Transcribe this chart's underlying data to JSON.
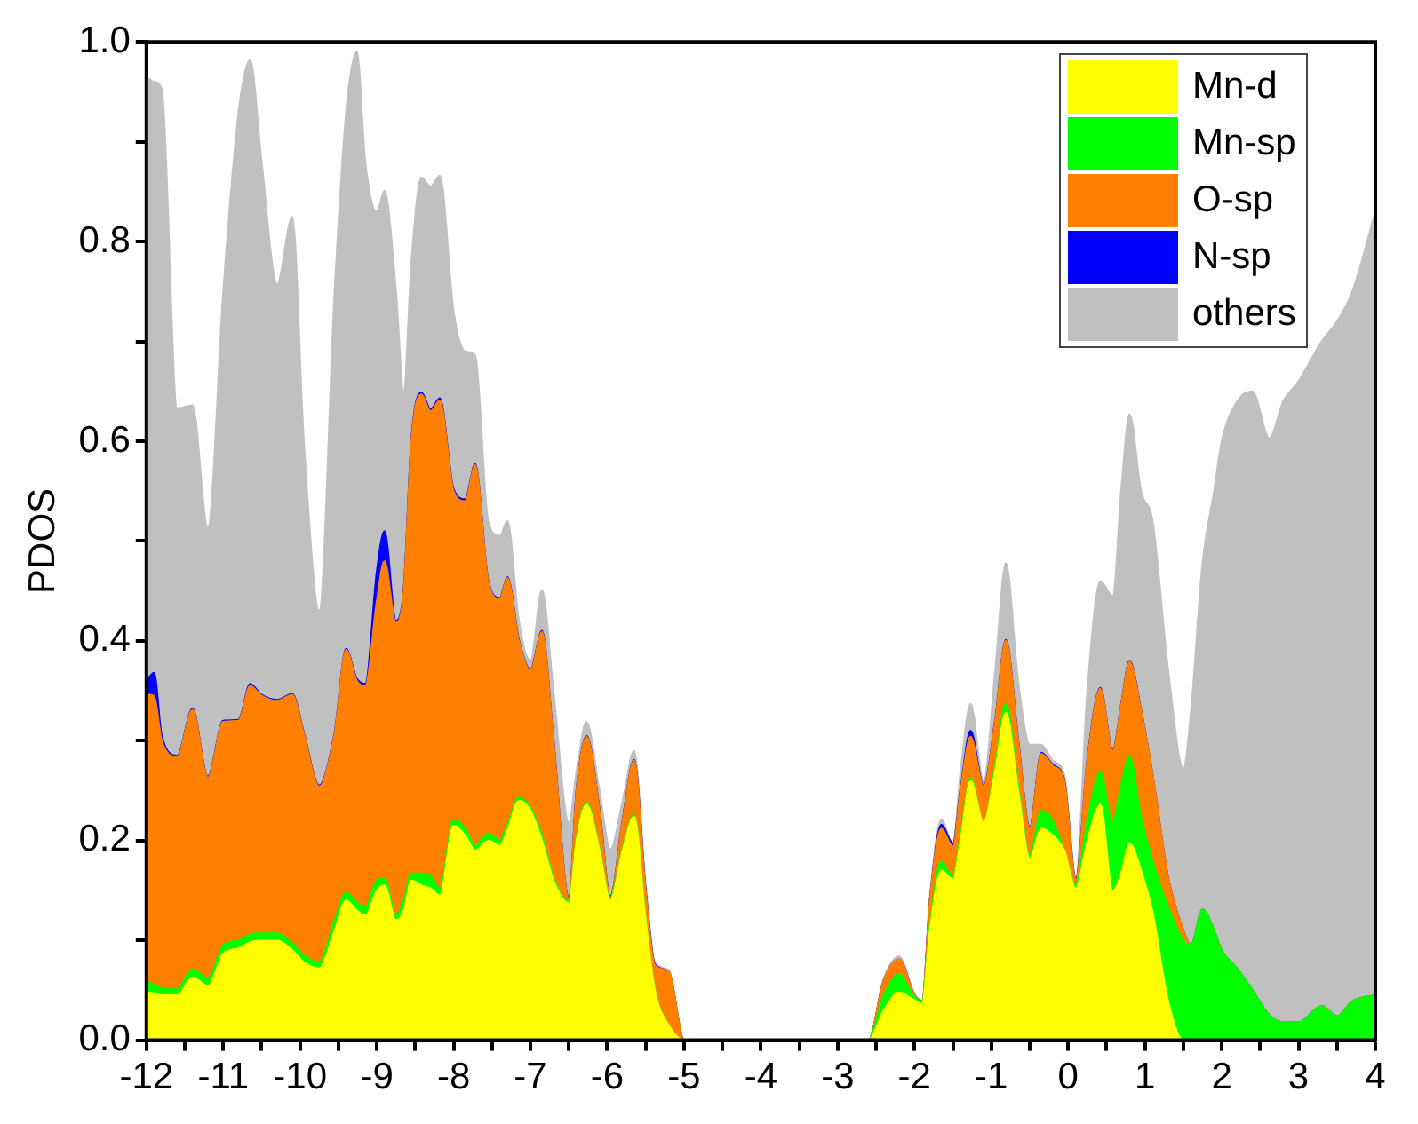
{
  "chart_data": {
    "type": "area",
    "stacked": true,
    "ylabel": "PDOS",
    "legend": "top right",
    "x": [
      -12,
      -11.9,
      -11.8,
      -11.6,
      -11.4,
      -11.2,
      -11.0,
      -10.8,
      -10.65,
      -10.5,
      -10.3,
      -10.1,
      -9.95,
      -9.75,
      -9.55,
      -9.4,
      -9.26,
      -9.15,
      -9.0,
      -8.9,
      -8.75,
      -8.65,
      -8.55,
      -8.42,
      -8.3,
      -8.18,
      -8.0,
      -7.85,
      -7.72,
      -7.55,
      -7.4,
      -7.3,
      -7.15,
      -7.0,
      -6.85,
      -6.7,
      -6.5,
      -6.4,
      -6.27,
      -6.1,
      -5.96,
      -5.8,
      -5.65,
      -5.5,
      -5.38,
      -5.2,
      -5.0,
      -2.6,
      -2.4,
      -2.2,
      -2.0,
      -1.9,
      -1.8,
      -1.65,
      -1.5,
      -1.4,
      -1.27,
      -1.1,
      -0.95,
      -0.81,
      -0.65,
      -0.5,
      -0.35,
      -0.2,
      -0.05,
      0.1,
      0.25,
      0.42,
      0.58,
      0.7,
      0.8,
      0.95,
      1.1,
      1.3,
      1.5,
      1.6,
      1.75,
      1.9,
      2.0,
      2.2,
      2.4,
      2.62,
      2.8,
      3.0,
      3.3,
      3.5,
      3.7,
      4.0
    ],
    "series": [
      {
        "name": "Mn-d",
        "color": "#ffff00",
        "values": [
          0.048,
          0.047,
          0.045,
          0.045,
          0.063,
          0.054,
          0.087,
          0.092,
          0.098,
          0.1,
          0.1,
          0.09,
          0.078,
          0.072,
          0.11,
          0.14,
          0.13,
          0.125,
          0.15,
          0.155,
          0.12,
          0.13,
          0.16,
          0.155,
          0.152,
          0.145,
          0.215,
          0.205,
          0.19,
          0.2,
          0.195,
          0.21,
          0.24,
          0.23,
          0.2,
          0.16,
          0.137,
          0.2,
          0.236,
          0.19,
          0.14,
          0.19,
          0.224,
          0.12,
          0.05,
          0.015,
          0,
          0,
          0.03,
          0.048,
          0.04,
          0.036,
          0.11,
          0.17,
          0.161,
          0.2,
          0.26,
          0.218,
          0.27,
          0.328,
          0.25,
          0.182,
          0.212,
          0.205,
          0.19,
          0.152,
          0.2,
          0.236,
          0.149,
          0.17,
          0.197,
          0.17,
          0.128,
          0.04,
          0,
          0,
          0,
          0,
          0,
          0,
          0,
          0,
          0,
          0,
          0,
          0,
          0,
          0
        ]
      },
      {
        "name": "Mn-sp",
        "color": "#00ff00",
        "values": [
          0.01,
          0.009,
          0.007,
          0.006,
          0.008,
          0.008,
          0.008,
          0.008,
          0.008,
          0.007,
          0.007,
          0.007,
          0.007,
          0.006,
          0.01,
          0.008,
          0.008,
          0.008,
          0.01,
          0.007,
          0.005,
          0.01,
          0.007,
          0.012,
          0.013,
          0.007,
          0.006,
          0.007,
          0.005,
          0.007,
          0.005,
          0.005,
          0.003,
          0.003,
          0.005,
          0.003,
          0.002,
          0.002,
          0.002,
          0.002,
          0.002,
          0.002,
          0.002,
          0.001,
          0.001,
          0,
          0,
          0,
          0.015,
          0.018,
          0.003,
          0.003,
          0.005,
          0.009,
          0.003,
          0.005,
          0.003,
          0,
          0.005,
          0.009,
          0.005,
          0.003,
          0.018,
          0.015,
          0,
          0.003,
          0.02,
          0.033,
          0.069,
          0.09,
          0.087,
          0.054,
          0.052,
          0.094,
          0.1,
          0.095,
          0.131,
          0.11,
          0.09,
          0.072,
          0.05,
          0.025,
          0.018,
          0.018,
          0.034,
          0.024,
          0.039,
          0.045
        ]
      },
      {
        "name": "O-sp",
        "color": "#ff8000",
        "values": [
          0.288,
          0.289,
          0.248,
          0.233,
          0.26,
          0.201,
          0.224,
          0.22,
          0.249,
          0.238,
          0.233,
          0.249,
          0.222,
          0.176,
          0.187,
          0.243,
          0.222,
          0.222,
          0.28,
          0.318,
          0.293,
          0.31,
          0.433,
          0.48,
          0.465,
          0.489,
          0.329,
          0.328,
          0.381,
          0.253,
          0.242,
          0.248,
          0.157,
          0.137,
          0.204,
          0.137,
          0.003,
          0.048,
          0.066,
          0.038,
          0.001,
          0.028,
          0.054,
          0.029,
          0.024,
          0.054,
          0,
          0,
          0.015,
          0.015,
          0.002,
          0,
          0.025,
          0.033,
          0.03,
          0.045,
          0.041,
          0.036,
          0.045,
          0.063,
          0.045,
          0.027,
          0.057,
          0.055,
          0.07,
          0.006,
          0.06,
          0.083,
          0.072,
          0.08,
          0.095,
          0.106,
          0.086,
          0.03,
          0.01,
          0,
          0,
          0,
          0,
          0,
          0,
          0,
          0,
          0,
          0,
          0,
          0,
          0
        ]
      },
      {
        "name": "N-sp",
        "color": "#0000ff",
        "values": [
          0.014,
          0.023,
          0.005,
          0.001,
          0.001,
          0.001,
          0.001,
          0.001,
          0.002,
          0.001,
          0.001,
          0.001,
          0.001,
          0.001,
          0.001,
          0.001,
          0.002,
          0.002,
          0.03,
          0.03,
          0.002,
          0.002,
          0.002,
          0.002,
          0.002,
          0.002,
          0.002,
          0.002,
          0.001,
          0.001,
          0.001,
          0.001,
          0.001,
          0.001,
          0.001,
          0.001,
          0.001,
          0.001,
          0.001,
          0.001,
          0.001,
          0.001,
          0.001,
          0.001,
          0.001,
          0,
          0,
          0,
          0,
          0,
          0,
          0,
          0,
          0.004,
          0.003,
          0.002,
          0.006,
          0.001,
          0.001,
          0.001,
          0.001,
          0.001,
          0.001,
          0.001,
          0.001,
          0.001,
          0.001,
          0.001,
          0.001,
          0.001,
          0.001,
          0.001,
          0,
          0,
          0,
          0,
          0,
          0,
          0,
          0,
          0,
          0,
          0,
          0,
          0,
          0,
          0,
          0
        ]
      },
      {
        "name": "others",
        "color": "#c0c0c0",
        "values": [
          0.605,
          0.592,
          0.648,
          0.348,
          0.304,
          0.249,
          0.43,
          0.609,
          0.625,
          0.534,
          0.416,
          0.478,
          0.292,
          0.175,
          0.442,
          0.538,
          0.628,
          0.523,
          0.36,
          0.341,
          0.33,
          0.198,
          0.178,
          0.215,
          0.223,
          0.223,
          0.178,
          0.148,
          0.109,
          0.059,
          0.062,
          0.056,
          0.019,
          0.009,
          0.041,
          0.049,
          0.075,
          0.019,
          0.014,
          0.019,
          0.047,
          0.019,
          0.009,
          0.004,
          0.002,
          0.001,
          0,
          0,
          0.002,
          0.003,
          0.002,
          0.001,
          0.005,
          0.005,
          0,
          0.018,
          0.027,
          0.005,
          0.049,
          0.077,
          0.059,
          0.083,
          0.008,
          0.004,
          0.005,
          0.002,
          0.069,
          0.107,
          0.154,
          0.219,
          0.247,
          0.219,
          0.254,
          0.209,
          0.162,
          0.235,
          0.347,
          0.44,
          0.51,
          0.568,
          0.6,
          0.578,
          0.622,
          0.642,
          0.666,
          0.696,
          0.711,
          0.785
        ]
      }
    ],
    "xlim": [
      -12,
      4
    ],
    "xticks": [
      -12,
      {
        "value": -11.5,
        "label": null
      },
      -11,
      {
        "value": -10.5,
        "label": null
      },
      -10,
      {
        "value": -9.5,
        "label": null
      },
      -9,
      {
        "value": -8.5,
        "label": null
      },
      -8,
      {
        "value": -7.5,
        "label": null
      },
      -7,
      {
        "value": -6.5,
        "label": null
      },
      -6,
      {
        "value": -5.5,
        "label": null
      },
      -5,
      {
        "value": -4.5,
        "label": null
      },
      -4,
      {
        "value": -3.5,
        "label": null
      },
      -3,
      {
        "value": -2.5,
        "label": null
      },
      -2,
      {
        "value": -1.5,
        "label": null
      },
      -1,
      {
        "value": -0.5,
        "label": null
      },
      0,
      {
        "value": 0.5,
        "label": null
      },
      1,
      {
        "value": 1.5,
        "label": null
      },
      2,
      {
        "value": 2.5,
        "label": null
      },
      3,
      {
        "value": 3.5,
        "label": null
      },
      4
    ],
    "ylim": [
      0,
      1
    ],
    "yticks": [
      {
        "value": 0,
        "label": "0.0"
      },
      {
        "value": 0.1,
        "label": null
      },
      {
        "value": 0.2,
        "label": "0.2"
      },
      {
        "value": 0.3,
        "label": null
      },
      {
        "value": 0.4,
        "label": "0.4"
      },
      {
        "value": 0.5,
        "label": null
      },
      {
        "value": 0.6,
        "label": "0.6"
      },
      {
        "value": 0.7,
        "label": null
      },
      {
        "value": 0.8,
        "label": "0.8"
      },
      {
        "value": 0.9,
        "label": null
      },
      {
        "value": 1,
        "label": "1.0"
      }
    ]
  }
}
